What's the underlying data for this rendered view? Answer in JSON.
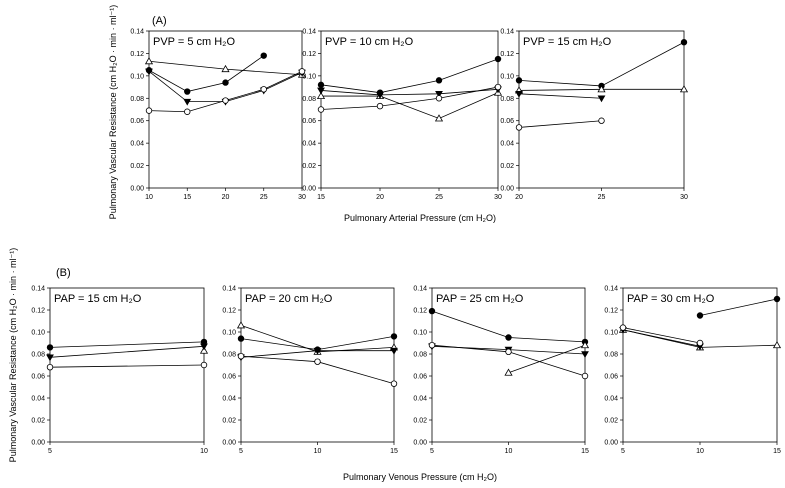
{
  "figure": {
    "panel_A_label": "(A)",
    "panel_B_label": "(B)"
  },
  "chart_data": [
    {
      "type": "line",
      "group": "A",
      "panel_label": "PVP = 5 cm H₂O",
      "x": [
        10,
        15,
        20,
        25,
        30
      ],
      "xticks": [
        10,
        15,
        20,
        25,
        30
      ],
      "xlim": [
        10,
        30
      ],
      "ylim": [
        0,
        0.14
      ],
      "yticks": [
        0.0,
        0.02,
        0.04,
        0.06,
        0.08,
        0.1,
        0.12,
        0.14
      ],
      "series": [
        {
          "marker": "filled-circle",
          "values": [
            0.105,
            0.086,
            0.094,
            0.118,
            null
          ]
        },
        {
          "marker": "open-triangle",
          "values": [
            0.113,
            null,
            0.106,
            null,
            0.101
          ]
        },
        {
          "marker": "filled-triangle-down",
          "values": [
            0.104,
            0.077,
            0.077,
            0.087,
            0.103
          ]
        },
        {
          "marker": "open-circle",
          "values": [
            0.069,
            0.068,
            0.078,
            0.088,
            0.104
          ]
        }
      ]
    },
    {
      "type": "line",
      "group": "A",
      "panel_label": "PVP = 10 cm H₂O",
      "x": [
        15,
        20,
        25,
        30
      ],
      "xticks": [
        15,
        20,
        25,
        30
      ],
      "xlim": [
        15,
        30
      ],
      "ylim": [
        0,
        0.14
      ],
      "yticks": [
        0.0,
        0.02,
        0.04,
        0.06,
        0.08,
        0.1,
        0.12,
        0.14
      ],
      "series": [
        {
          "marker": "filled-circle",
          "values": [
            0.092,
            0.085,
            0.096,
            0.115
          ]
        },
        {
          "marker": "open-triangle",
          "values": [
            0.082,
            0.082,
            0.062,
            0.085
          ]
        },
        {
          "marker": "filled-triangle-down",
          "values": [
            0.087,
            0.083,
            0.084,
            0.088
          ]
        },
        {
          "marker": "open-circle",
          "values": [
            0.07,
            0.073,
            0.08,
            0.09
          ]
        }
      ]
    },
    {
      "type": "line",
      "group": "A",
      "panel_label": "PVP = 15 cm H₂O",
      "x": [
        20,
        25,
        30
      ],
      "xticks": [
        20,
        25,
        30
      ],
      "xlim": [
        20,
        30
      ],
      "ylim": [
        0,
        0.14
      ],
      "yticks": [
        0.0,
        0.02,
        0.04,
        0.06,
        0.08,
        0.1,
        0.12,
        0.14
      ],
      "series": [
        {
          "marker": "filled-circle",
          "values": [
            0.096,
            0.091,
            0.13
          ]
        },
        {
          "marker": "open-triangle",
          "values": [
            0.087,
            0.088,
            0.088
          ]
        },
        {
          "marker": "filled-triangle-down",
          "values": [
            0.084,
            0.08,
            null
          ]
        },
        {
          "marker": "open-circle",
          "values": [
            0.054,
            0.06,
            null
          ]
        }
      ]
    },
    {
      "type": "line",
      "group": "B",
      "panel_label": "PAP = 15 cm H₂O",
      "x": [
        5,
        10
      ],
      "xticks": [
        5,
        10
      ],
      "xlim": [
        5,
        10
      ],
      "ylim": [
        0,
        0.14
      ],
      "yticks": [
        0.0,
        0.02,
        0.04,
        0.06,
        0.08,
        0.1,
        0.12,
        0.14
      ],
      "series": [
        {
          "marker": "filled-circle",
          "values": [
            0.086,
            0.091
          ]
        },
        {
          "marker": "open-triangle",
          "values": [
            null,
            0.083
          ]
        },
        {
          "marker": "filled-triangle-down",
          "values": [
            0.077,
            0.087
          ]
        },
        {
          "marker": "open-circle",
          "values": [
            0.068,
            0.07
          ]
        }
      ]
    },
    {
      "type": "line",
      "group": "B",
      "panel_label": "PAP = 20 cm H₂O",
      "x": [
        5,
        10,
        15
      ],
      "xticks": [
        5,
        10,
        15
      ],
      "xlim": [
        5,
        15
      ],
      "ylim": [
        0,
        0.14
      ],
      "yticks": [
        0.0,
        0.02,
        0.04,
        0.06,
        0.08,
        0.1,
        0.12,
        0.14
      ],
      "series": [
        {
          "marker": "filled-circle",
          "values": [
            0.094,
            0.084,
            0.096
          ]
        },
        {
          "marker": "open-triangle",
          "values": [
            0.106,
            0.082,
            0.086
          ]
        },
        {
          "marker": "filled-triangle-down",
          "values": [
            0.077,
            0.083,
            0.083
          ]
        },
        {
          "marker": "open-circle",
          "values": [
            0.078,
            0.073,
            0.053
          ]
        }
      ]
    },
    {
      "type": "line",
      "group": "B",
      "panel_label": "PAP = 25 cm H₂O",
      "x": [
        5,
        10,
        15
      ],
      "xticks": [
        5,
        10,
        15
      ],
      "xlim": [
        5,
        15
      ],
      "ylim": [
        0,
        0.14
      ],
      "yticks": [
        0.0,
        0.02,
        0.04,
        0.06,
        0.08,
        0.1,
        0.12,
        0.14
      ],
      "series": [
        {
          "marker": "filled-circle",
          "values": [
            0.119,
            0.095,
            0.091
          ]
        },
        {
          "marker": "open-triangle",
          "values": [
            null,
            0.063,
            0.088
          ]
        },
        {
          "marker": "filled-triangle-down",
          "values": [
            0.087,
            0.084,
            0.08
          ]
        },
        {
          "marker": "open-circle",
          "values": [
            0.088,
            0.082,
            0.06
          ]
        }
      ]
    },
    {
      "type": "line",
      "group": "B",
      "panel_label": "PAP = 30 cm H₂O",
      "x": [
        5,
        10,
        15
      ],
      "xticks": [
        5,
        10,
        15
      ],
      "xlim": [
        5,
        15
      ],
      "ylim": [
        0,
        0.14
      ],
      "yticks": [
        0.0,
        0.02,
        0.04,
        0.06,
        0.08,
        0.1,
        0.12,
        0.14
      ],
      "series": [
        {
          "marker": "filled-circle",
          "values": [
            null,
            0.115,
            0.13
          ]
        },
        {
          "marker": "open-triangle",
          "values": [
            0.102,
            0.086,
            0.088
          ]
        },
        {
          "marker": "filled-triangle-down",
          "values": [
            0.102,
            0.087,
            null
          ]
        },
        {
          "marker": "open-circle",
          "values": [
            0.104,
            0.09,
            null
          ]
        }
      ]
    }
  ],
  "axis_labels": {
    "A_x": "Pulmonary Arterial Pressure (cm H₂O)",
    "A_y": "Pulmonary Vascular Resistance (cm H₂O · min · ml⁻¹)",
    "B_x": "Pulmonary Venous Pressure (cm H₂O)",
    "B_y": "Pulmonary Vascular Resistance (cm H₂O · min · ml⁻¹)"
  }
}
